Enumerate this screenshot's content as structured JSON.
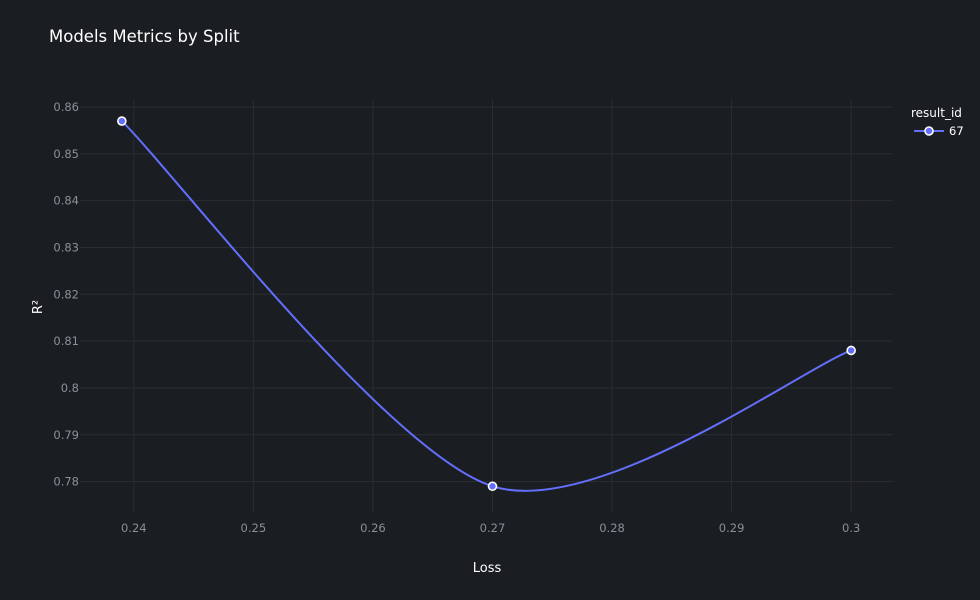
{
  "chart_data": {
    "type": "line",
    "title": "Models Metrics by Split",
    "xlabel": "Loss",
    "ylabel": "R²",
    "xlim": [
      0.2355,
      0.3035
    ],
    "ylim": [
      0.7735,
      0.8615
    ],
    "x_ticks": [
      0.24,
      0.25,
      0.26,
      0.27,
      0.28,
      0.29,
      0.3
    ],
    "x_tick_labels": [
      "0.24",
      "0.25",
      "0.26",
      "0.27",
      "0.28",
      "0.29",
      "0.3"
    ],
    "y_ticks": [
      0.78,
      0.79,
      0.8,
      0.81,
      0.82,
      0.83,
      0.84,
      0.85,
      0.86
    ],
    "y_tick_labels": [
      "0.78",
      "0.79",
      "0.8",
      "0.81",
      "0.82",
      "0.83",
      "0.84",
      "0.85",
      "0.86"
    ],
    "grid": true,
    "legend_title": "result_id",
    "legend_position": "top-right",
    "series": [
      {
        "name": "67",
        "color": "#636efa",
        "smoothing": "spline",
        "x": [
          0.239,
          0.27,
          0.3
        ],
        "y": [
          0.857,
          0.779,
          0.808
        ]
      }
    ]
  },
  "colors": {
    "background": "#1a1d21",
    "grid": "#2a2e33",
    "tick_text": "#8b9096",
    "text": "#ffffff",
    "series": "#636efa",
    "marker_stroke": "#ffffff"
  }
}
